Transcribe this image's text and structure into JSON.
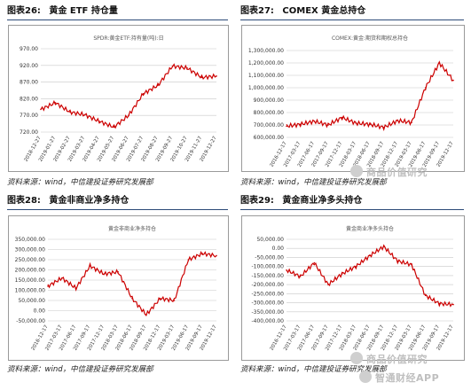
{
  "line_color": "#cc0000",
  "header_line_color": "#2c4a78",
  "panels": [
    {
      "figure_label": "图表26:",
      "figure_title": "黄金 ETF 持仓量",
      "source": ""
    },
    {
      "figure_label": "图表27:",
      "figure_title": "COMEX 黄金总持仓",
      "source": "资料来源：wind，中信建投证券研究发展部"
    },
    {
      "figure_label": "图表28:",
      "figure_title": "黄金非商业净多持仓",
      "source": "资料来源：wind，中信建投证券研究发展部"
    },
    {
      "figure_label": "图表29:",
      "figure_title": "黄金商业净多头持仓",
      "source": "资料来源：wind，中信建投证券研究发展部"
    }
  ],
  "source_left_top": "资料来源：wind，中信建投证券研究发展部",
  "watermarks": [
    "商品价值研究",
    "商品价值研究",
    "智通财经APP"
  ],
  "chart_data": [
    {
      "type": "line",
      "title": "SPDR:黄金ETF:持有量(吨):日",
      "x": [
        "2018-12-27",
        "2019-01-27",
        "2019-02-27",
        "2019-03-27",
        "2019-04-27",
        "2019-05-27",
        "2019-06-27",
        "2019-07-27",
        "2019-08-27",
        "2019-09-27",
        "2019-10-27",
        "2019-11-27",
        "2019-12-27"
      ],
      "y": [
        788,
        808,
        780,
        772,
        752,
        735,
        770,
        835,
        860,
        918,
        912,
        884,
        888
      ],
      "ylim": [
        720,
        970
      ],
      "yticks": [
        "970.00",
        "920.00",
        "870.00",
        "820.00",
        "770.00",
        "720.00"
      ],
      "xticks": [
        "2018-12-27",
        "2019-01-27",
        "2019-02-27",
        "2019-03-27",
        "2019-04-27",
        "2019-05-27",
        "2019-06-27",
        "2019-07-27",
        "2019-08-27",
        "2019-09-27",
        "2019-10-27",
        "2019-11-27",
        "2019-12-27"
      ]
    },
    {
      "type": "line",
      "title": "COMEX:黄金:期货和期权总持仓",
      "x": [
        "2016-12-17",
        "2017-03-17",
        "2017-06-17",
        "2017-09-17",
        "2017-12-17",
        "2018-03-17",
        "2018-06-17",
        "2018-09-17",
        "2018-12-17",
        "2019-03-17",
        "2019-06-17",
        "2019-09-17",
        "2019-12-17"
      ],
      "y": [
        690000,
        705000,
        730000,
        700000,
        760000,
        715000,
        705000,
        680000,
        735000,
        720000,
        1000000,
        1200000,
        1060000
      ],
      "ylim": [
        600000,
        1300000
      ],
      "yticks": [
        "1,300,000.00",
        "1,200,000.00",
        "1,100,000.00",
        "1,000,000.00",
        "900,000.00",
        "800,000.00",
        "700,000.00",
        "600,000.00"
      ],
      "xticks": [
        "2016-12-17",
        "2017-03-17",
        "2017-06-17",
        "2017-09-17",
        "2017-12-17",
        "2018-03-17",
        "2018-06-17",
        "2018-09-17",
        "2018-12-17",
        "2019-03-17",
        "2019-06-17",
        "2019-09-17",
        "2019-12-17"
      ]
    },
    {
      "type": "line",
      "title": "黄金非商业净多持仓",
      "x": [
        "2016-12-17",
        "2017-03-17",
        "2017-06-17",
        "2017-09-17",
        "2017-12-17",
        "2018-03-17",
        "2018-06-17",
        "2018-09-17",
        "2018-12-17",
        "2019-03-17",
        "2019-06-17",
        "2019-09-17",
        "2019-12-17"
      ],
      "y": [
        120000,
        160000,
        110000,
        220000,
        180000,
        190000,
        60000,
        -20000,
        60000,
        50000,
        250000,
        280000,
        270000
      ],
      "ylim": [
        -50000,
        350000
      ],
      "yticks": [
        "350,000.00",
        "300,000.00",
        "250,000.00",
        "200,000.00",
        "150,000.00",
        "100,000.00",
        "50,000.00",
        "0.00",
        "-50,000.00"
      ],
      "xticks": [
        "2016-12-17",
        "2017-03-17",
        "2017-06-17",
        "2017-09-17",
        "2017-12-17",
        "2018-03-17",
        "2018-06-17",
        "2018-09-17",
        "2018-12-17",
        "2019-03-17",
        "2019-06-17",
        "2019-09-17",
        "2019-12-17"
      ]
    },
    {
      "type": "line",
      "title": "黄金商业净多头持仓",
      "x": [
        "2016-12-17",
        "2017-03-17",
        "2017-06-17",
        "2017-09-17",
        "2017-12-17",
        "2018-03-17",
        "2018-06-17",
        "2018-09-17",
        "2018-12-17",
        "2019-03-17",
        "2019-06-17",
        "2019-09-17",
        "2019-12-17"
      ],
      "y": [
        -120000,
        -155000,
        -80000,
        -200000,
        -140000,
        -100000,
        -40000,
        10000,
        -70000,
        -90000,
        -260000,
        -305000,
        -310000
      ],
      "ylim": [
        -400000,
        50000
      ],
      "yticks": [
        "50,000.00",
        "0.00",
        "-50,000.00",
        "-100,000.00",
        "-150,000.00",
        "-200,000.00",
        "-250,000.00",
        "-300,000.00",
        "-350,000.00",
        "-400,000.00"
      ],
      "xticks": [
        "2016-12-17",
        "2017-03-17",
        "2017-06-17",
        "2017-09-17",
        "2017-12-17",
        "2018-03-17",
        "2018-06-17",
        "2018-09-17",
        "2018-12-17",
        "2019-03-17",
        "2019-06-17",
        "2019-09-17",
        "2019-12-17"
      ]
    }
  ]
}
